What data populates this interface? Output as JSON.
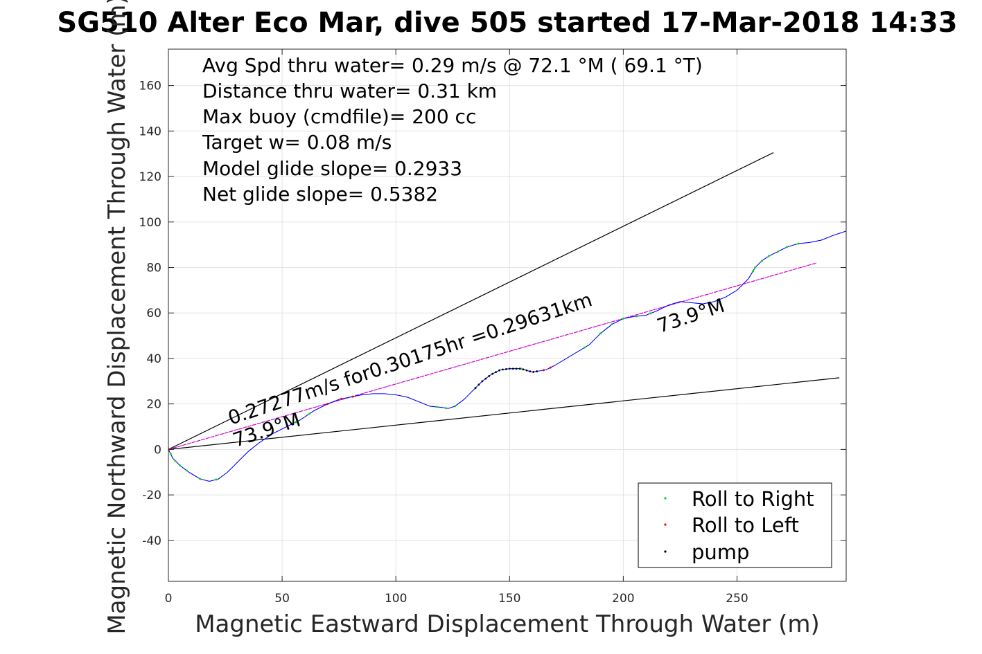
{
  "chart_data": {
    "type": "line",
    "title": "SG510 Alter Eco Mar, dive 505 started 17-Mar-2018 14:33",
    "xlabel": "Magnetic Eastward Displacement Through Water (m)",
    "ylabel": "Magnetic Northward Displacement Through Water (m)",
    "xlim": [
      0,
      298
    ],
    "ylim": [
      -58,
      176
    ],
    "xticks": [
      0,
      50,
      100,
      150,
      200,
      250
    ],
    "yticks": [
      -40,
      -20,
      0,
      20,
      40,
      60,
      80,
      100,
      120,
      140,
      160
    ],
    "grid": true,
    "legend_position": "bottom-right",
    "annotations": [
      "Avg Spd thru water=  0.29 m/s @  72.1 °M ( 69.1 °T)",
      "Distance thru water=  0.31 km",
      "Max buoy (cmdfile)= 200 cc",
      "Target w= 0.08 m/s",
      "Model glide slope= 0.2933",
      "Net glide slope= 0.5382"
    ],
    "line_labels": {
      "speed": "0.27277m/s for0.30175hr =0.29631km",
      "heading_start": "73.9°M",
      "heading_end": "73.9°M"
    },
    "legend": [
      {
        "name": "Roll to Right",
        "color": "#00dd00"
      },
      {
        "name": "Roll to Left",
        "color": "#ee0000"
      },
      {
        "name": "pump",
        "color": "#000000"
      }
    ],
    "colors": {
      "track": "#0000ff",
      "heading": "#cc00cc",
      "envelope": "#000000"
    },
    "series": [
      {
        "role": "track",
        "x": [
          0,
          2,
          5,
          9,
          14,
          18,
          22,
          26,
          30,
          35,
          40,
          46,
          52,
          58,
          64,
          70,
          75,
          80,
          85,
          90,
          95,
          100,
          105,
          110,
          115,
          120,
          123,
          126,
          130,
          135,
          138,
          142,
          146,
          150,
          155,
          160,
          163,
          166,
          170,
          175,
          180,
          185,
          190,
          195,
          200,
          205,
          210,
          215,
          220,
          225,
          230,
          235,
          240,
          245,
          250,
          255,
          258,
          261,
          264,
          268,
          272,
          277,
          282,
          287,
          292,
          298
        ],
        "y": [
          0,
          -4,
          -7,
          -10,
          -13,
          -14,
          -13,
          -10,
          -6,
          -1,
          3,
          7,
          10,
          13,
          17,
          20,
          22,
          23,
          24,
          24.5,
          24.5,
          24,
          23,
          21,
          19,
          18.5,
          18,
          19,
          22,
          27,
          30,
          33,
          35,
          35.5,
          35.5,
          34,
          34.5,
          35,
          37,
          40,
          43,
          46,
          51,
          55,
          57.5,
          58.5,
          59,
          61,
          63.5,
          65,
          64.5,
          64,
          65,
          67,
          70,
          75,
          80,
          83,
          85,
          87,
          89,
          90.5,
          91,
          92,
          94,
          96
        ]
      }
    ],
    "pump_x_range": [
      135,
      162
    ],
    "roll_right_x": [
      1,
      3,
      5,
      8,
      14,
      21,
      56,
      62,
      118,
      122,
      126,
      135,
      155,
      183,
      190,
      195,
      200,
      206,
      212,
      257,
      258,
      261,
      264,
      268,
      272,
      277
    ],
    "roll_left_x": [
      70,
      76,
      81,
      165,
      168
    ]
  }
}
